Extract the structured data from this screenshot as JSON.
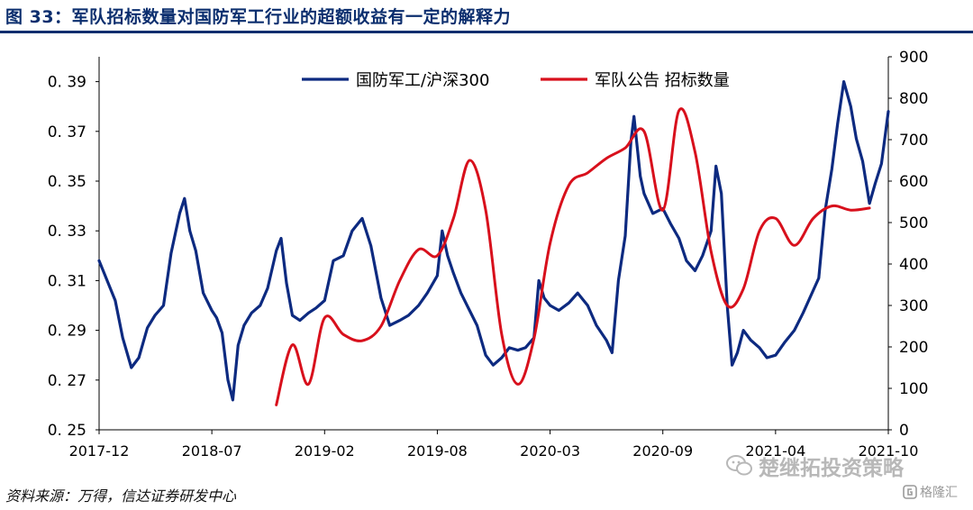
{
  "title": "图 33：军队招标数量对国防军工行业的超额收益有一定的解释力",
  "source": "资料来源：万得，信达证券研发中心",
  "watermark": "楚继拓投资策略",
  "watermark_badge": "格隆汇",
  "colors": {
    "series1": "#0d2a80",
    "series2": "#d8101c",
    "title": "#0b2e6e"
  },
  "icons": {
    "watermark": "wechat-icon",
    "badge": "glh-logo-icon"
  },
  "chart_data": {
    "type": "line",
    "x_ticks": [
      "2017-12",
      "2018-07",
      "2019-02",
      "2019-08",
      "2020-03",
      "2020-09",
      "2021-04",
      "2021-10"
    ],
    "y_left": {
      "ticks": [
        "0.25",
        "0.27",
        "0.29",
        "0.31",
        "0.33",
        "0.35",
        "0.37",
        "0.39"
      ],
      "range": [
        0.25,
        0.4
      ]
    },
    "y_right": {
      "ticks": [
        "0",
        "100",
        "200",
        "300",
        "400",
        "500",
        "600",
        "700",
        "800",
        "900"
      ],
      "range": [
        0,
        900
      ]
    },
    "legend_position": "top-center",
    "series": [
      {
        "name": "国防军工/沪深300",
        "axis": "left",
        "points": [
          [
            "2017-12",
            0.318
          ],
          [
            "2018-01",
            0.302
          ],
          [
            "2018-01-15",
            0.287
          ],
          [
            "2018-02",
            0.275
          ],
          [
            "2018-02-15",
            0.279
          ],
          [
            "2018-03",
            0.291
          ],
          [
            "2018-03-15",
            0.296
          ],
          [
            "2018-04",
            0.3
          ],
          [
            "2018-04-15",
            0.321
          ],
          [
            "2018-05",
            0.337
          ],
          [
            "2018-05-10",
            0.343
          ],
          [
            "2018-05-20",
            0.33
          ],
          [
            "2018-06",
            0.322
          ],
          [
            "2018-06-15",
            0.305
          ],
          [
            "2018-07",
            0.298
          ],
          [
            "2018-07-10",
            0.295
          ],
          [
            "2018-07-20",
            0.289
          ],
          [
            "2018-08",
            0.27
          ],
          [
            "2018-08-10",
            0.262
          ],
          [
            "2018-08-20",
            0.284
          ],
          [
            "2018-09",
            0.292
          ],
          [
            "2018-09-15",
            0.297
          ],
          [
            "2018-10",
            0.3
          ],
          [
            "2018-10-15",
            0.307
          ],
          [
            "2018-11",
            0.322
          ],
          [
            "2018-11-10",
            0.327
          ],
          [
            "2018-11-20",
            0.309
          ],
          [
            "2018-12",
            0.296
          ],
          [
            "2018-12-15",
            0.294
          ],
          [
            "2019-01",
            0.297
          ],
          [
            "2019-01-15",
            0.299
          ],
          [
            "2019-02",
            0.302
          ],
          [
            "2019-02-15",
            0.318
          ],
          [
            "2019-03",
            0.32
          ],
          [
            "2019-03-15",
            0.33
          ],
          [
            "2019-04",
            0.335
          ],
          [
            "2019-04-15",
            0.324
          ],
          [
            "2019-05",
            0.303
          ],
          [
            "2019-05-15",
            0.292
          ],
          [
            "2019-06",
            0.294
          ],
          [
            "2019-06-15",
            0.296
          ],
          [
            "2019-07",
            0.3
          ],
          [
            "2019-07-15",
            0.305
          ],
          [
            "2019-08",
            0.312
          ],
          [
            "2019-08-10",
            0.33
          ],
          [
            "2019-08-20",
            0.32
          ],
          [
            "2019-09",
            0.313
          ],
          [
            "2019-09-15",
            0.305
          ],
          [
            "2019-10",
            0.298
          ],
          [
            "2019-10-15",
            0.292
          ],
          [
            "2019-11",
            0.28
          ],
          [
            "2019-11-15",
            0.276
          ],
          [
            "2019-12",
            0.279
          ],
          [
            "2019-12-15",
            0.283
          ],
          [
            "2020-01",
            0.282
          ],
          [
            "2020-01-15",
            0.283
          ],
          [
            "2020-02",
            0.287
          ],
          [
            "2020-02-10",
            0.31
          ],
          [
            "2020-02-20",
            0.303
          ],
          [
            "2020-03",
            0.3
          ],
          [
            "2020-03-15",
            0.298
          ],
          [
            "2020-04",
            0.301
          ],
          [
            "2020-04-15",
            0.305
          ],
          [
            "2020-05",
            0.3
          ],
          [
            "2020-05-15",
            0.292
          ],
          [
            "2020-06",
            0.286
          ],
          [
            "2020-06-10",
            0.281
          ],
          [
            "2020-06-20",
            0.31
          ],
          [
            "2020-07",
            0.328
          ],
          [
            "2020-07-10",
            0.366
          ],
          [
            "2020-07-15",
            0.376
          ],
          [
            "2020-07-25",
            0.352
          ],
          [
            "2020-08",
            0.345
          ],
          [
            "2020-08-15",
            0.337
          ],
          [
            "2020-09",
            0.339
          ],
          [
            "2020-09-15",
            0.333
          ],
          [
            "2020-10",
            0.327
          ],
          [
            "2020-10-15",
            0.318
          ],
          [
            "2020-11",
            0.314
          ],
          [
            "2020-11-15",
            0.32
          ],
          [
            "2020-12",
            0.33
          ],
          [
            "2020-12-10",
            0.356
          ],
          [
            "2020-12-20",
            0.345
          ],
          [
            "2021-01",
            0.3
          ],
          [
            "2021-01-10",
            0.276
          ],
          [
            "2021-01-20",
            0.281
          ],
          [
            "2021-02",
            0.29
          ],
          [
            "2021-02-15",
            0.286
          ],
          [
            "2021-03",
            0.283
          ],
          [
            "2021-03-15",
            0.279
          ],
          [
            "2021-04",
            0.28
          ],
          [
            "2021-04-15",
            0.285
          ],
          [
            "2021-05",
            0.29
          ],
          [
            "2021-05-15",
            0.297
          ],
          [
            "2021-06",
            0.306
          ],
          [
            "2021-06-10",
            0.311
          ],
          [
            "2021-06-20",
            0.338
          ],
          [
            "2021-07",
            0.355
          ],
          [
            "2021-07-10",
            0.373
          ],
          [
            "2021-07-20",
            0.39
          ],
          [
            "2021-08",
            0.38
          ],
          [
            "2021-08-10",
            0.367
          ],
          [
            "2021-08-20",
            0.358
          ],
          [
            "2021-09",
            0.341
          ],
          [
            "2021-09-10",
            0.349
          ],
          [
            "2021-09-20",
            0.357
          ],
          [
            "2021-10",
            0.378
          ]
        ]
      },
      {
        "name": "军队公告 招标数量",
        "axis": "right",
        "points": [
          [
            "2018-11",
            60
          ],
          [
            "2018-12",
            205
          ],
          [
            "2019-01",
            110
          ],
          [
            "2019-02",
            270
          ],
          [
            "2019-03",
            230
          ],
          [
            "2019-04",
            215
          ],
          [
            "2019-05",
            250
          ],
          [
            "2019-06",
            360
          ],
          [
            "2019-07",
            435
          ],
          [
            "2019-08",
            420
          ],
          [
            "2019-09",
            510
          ],
          [
            "2019-10",
            650
          ],
          [
            "2019-11",
            530
          ],
          [
            "2019-12",
            230
          ],
          [
            "2020-01",
            110
          ],
          [
            "2020-02",
            220
          ],
          [
            "2020-03",
            450
          ],
          [
            "2020-04",
            590
          ],
          [
            "2020-05",
            620
          ],
          [
            "2020-06",
            655
          ],
          [
            "2020-07",
            680
          ],
          [
            "2020-08",
            720
          ],
          [
            "2020-09",
            530
          ],
          [
            "2020-10",
            770
          ],
          [
            "2020-11",
            670
          ],
          [
            "2020-12",
            430
          ],
          [
            "2021-01",
            300
          ],
          [
            "2021-02",
            340
          ],
          [
            "2021-03",
            480
          ],
          [
            "2021-04",
            510
          ],
          [
            "2021-05",
            445
          ],
          [
            "2021-06",
            510
          ],
          [
            "2021-07",
            540
          ],
          [
            "2021-08",
            530
          ],
          [
            "2021-09",
            535
          ]
        ]
      }
    ]
  }
}
